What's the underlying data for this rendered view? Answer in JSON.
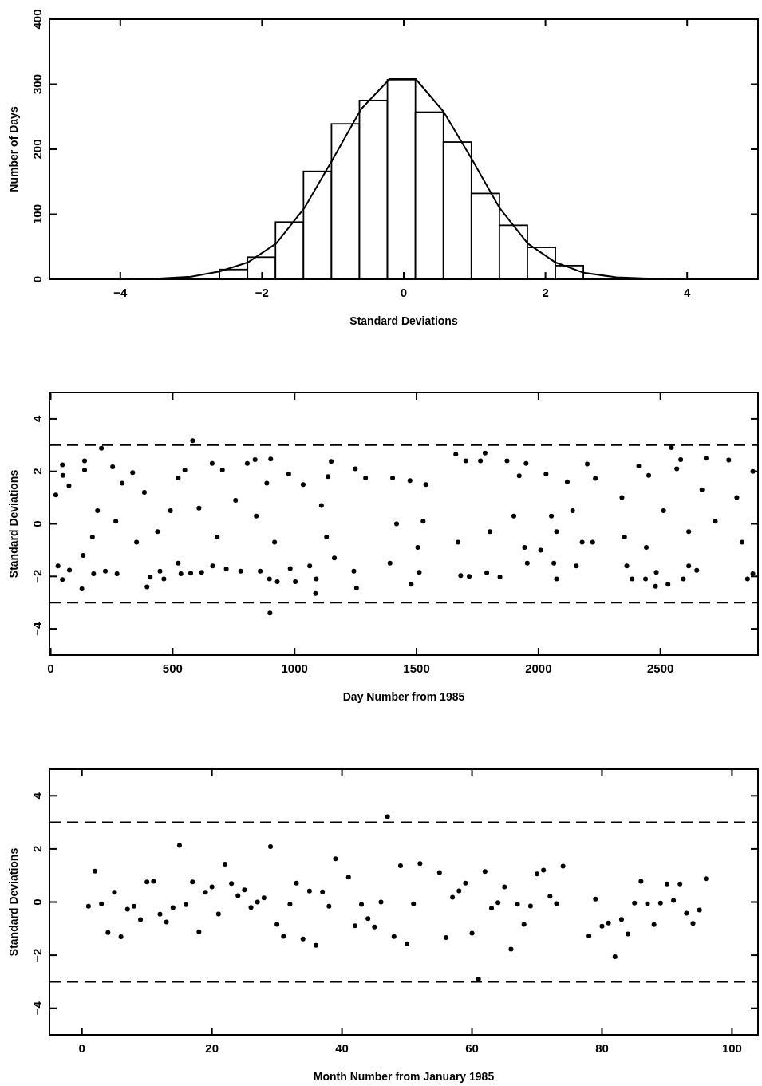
{
  "chart_data": [
    {
      "type": "histogram",
      "xlabel": "Standard Deviations",
      "ylabel": "Number of Days",
      "xlim": [
        -5,
        5
      ],
      "xticks": [
        -4,
        -2,
        0,
        2,
        4
      ],
      "ylim": [
        0,
        400
      ],
      "yticks": [
        0,
        100,
        200,
        300,
        400
      ],
      "grid": false,
      "series": [
        {
          "type": "histogram",
          "color": "#ffffff",
          "bins": [
            -2.6,
            -2.205,
            -1.81,
            -1.415,
            -1.02,
            -0.625,
            -0.23,
            0.165,
            0.56,
            0.955,
            1.35,
            1.745,
            2.14,
            2.535
          ],
          "values": [
            15,
            34,
            88,
            166,
            239,
            275,
            307,
            257,
            211,
            132,
            83,
            49,
            21
          ]
        },
        {
          "type": "line",
          "color": "#000000",
          "x": [
            -5,
            -4,
            -3.5,
            -3,
            -2.6,
            -2.2,
            -1.8,
            -1.4,
            -1,
            -0.6,
            -0.2,
            0.17,
            0.56,
            0.96,
            1.35,
            1.75,
            2.14,
            2.54,
            3,
            3.5,
            4,
            5
          ],
          "values": [
            0,
            0,
            1,
            4,
            12,
            26,
            55,
            110,
            185,
            262,
            308,
            308,
            258,
            185,
            110,
            55,
            26,
            10,
            3,
            1,
            0,
            0
          ]
        }
      ]
    },
    {
      "type": "scatter",
      "xlabel": "Day Number from 1985",
      "ylabel": "Standard Deviations",
      "xlim": [
        -5,
        2900
      ],
      "xticks": [
        0,
        500,
        1000,
        1500,
        2000,
        2500
      ],
      "ylim": [
        -5,
        5
      ],
      "yticks": [
        -4,
        -2,
        0,
        2,
        4
      ],
      "grid": false,
      "marker": "circle",
      "ref_lines": [
        {
          "axis": "y",
          "value": 3,
          "line_style": "dashed"
        },
        {
          "axis": "y",
          "value": -3,
          "line_style": "dashed"
        }
      ],
      "series": [
        {
          "color": "#000000",
          "x": [
            48,
            50,
            30,
            48,
            21,
            77,
            75,
            139,
            128,
            139,
            133,
            176,
            208,
            224,
            254,
            272,
            293,
            267,
            192,
            171,
            336,
            395,
            408,
            448,
            464,
            384,
            352,
            438,
            523,
            582,
            550,
            534,
            574,
            619,
            523,
            491,
            608,
            662,
            704,
            664,
            720,
            683,
            758,
            779,
            806,
            838,
            902,
            886,
            859,
            897,
            899,
            929,
            976,
            1003,
            982,
            918,
            843,
            1035,
            1089,
            1086,
            1062,
            1150,
            1163,
            1137,
            1110,
            1131,
            1249,
            1254,
            1243,
            1291,
            1391,
            1478,
            1511,
            1402,
            1473,
            1538,
            1527,
            1418,
            1505,
            1661,
            1781,
            1702,
            1762,
            1871,
            1949,
            1681,
            1716,
            1788,
            1842,
            1921,
            1670,
            1801,
            1899,
            1943,
            1954,
            2031,
            2074,
            2009,
            2053,
            2074,
            2063,
            2118,
            2200,
            2233,
            2155,
            2179,
            2222,
            2140,
            2342,
            2353,
            2362,
            2384,
            2411,
            2452,
            2439,
            2480,
            2483,
            2531,
            2545,
            2583,
            2567,
            2594,
            2687,
            2780,
            2616,
            2649,
            2857,
            2879,
            2879,
            2725,
            2513,
            2616,
            2813,
            2835,
            2442,
            2670
          ],
          "values": [
            2.25,
            1.85,
            -1.6,
            -2.12,
            1.1,
            -1.76,
            1.45,
            2.4,
            -2.48,
            2.05,
            -1.2,
            -1.9,
            2.88,
            -1.8,
            2.17,
            -1.9,
            1.55,
            0.1,
            0.5,
            -0.5,
            1.95,
            -2.4,
            -2.03,
            -1.8,
            -2.1,
            1.2,
            -0.7,
            -0.3,
            1.75,
            3.17,
            2.05,
            -1.9,
            -1.88,
            -1.85,
            -1.5,
            0.5,
            0.6,
            2.3,
            2.05,
            -1.6,
            -1.72,
            -0.5,
            0.9,
            -1.8,
            2.3,
            2.45,
            2.47,
            1.55,
            -1.8,
            -2.1,
            -3.4,
            -2.2,
            1.9,
            -2.2,
            -1.7,
            -0.7,
            0.3,
            1.5,
            -2.1,
            -2.65,
            -1.6,
            2.38,
            -1.3,
            1.8,
            0.7,
            -0.5,
            2.1,
            -2.45,
            -1.8,
            1.75,
            -1.5,
            -2.3,
            -1.85,
            1.75,
            1.65,
            1.5,
            0.1,
            0,
            -0.9,
            2.65,
            2.7,
            2.4,
            2.4,
            2.4,
            2.3,
            -1.97,
            -2,
            -1.86,
            -2.02,
            1.83,
            -0.7,
            -0.3,
            0.3,
            -0.9,
            -1.5,
            1.9,
            -2.1,
            -1,
            0.3,
            -0.3,
            -1.5,
            1.6,
            2.28,
            1.73,
            -1.6,
            -0.7,
            -0.7,
            0.5,
            1,
            -0.5,
            -1.6,
            -2.1,
            2.2,
            1.85,
            -2.1,
            -2.38,
            -1.85,
            -2.3,
            2.9,
            2.45,
            2.1,
            -2.1,
            2.5,
            2.43,
            -1.6,
            -1.77,
            -2.1,
            2,
            -1.9,
            0.1,
            0.5,
            -0.3,
            1,
            -0.7,
            -0.9,
            1.3
          ]
        }
      ]
    },
    {
      "type": "scatter",
      "xlabel": "Month Number from January 1985",
      "ylabel": "Standard Deviations",
      "xlim": [
        -5,
        104
      ],
      "xticks": [
        0,
        20,
        40,
        60,
        80,
        100
      ],
      "ylim": [
        -5,
        5
      ],
      "yticks": [
        -4,
        -2,
        0,
        2,
        4
      ],
      "grid": false,
      "marker": "circle",
      "ref_lines": [
        {
          "axis": "y",
          "value": 3,
          "line_style": "dashed"
        },
        {
          "axis": "y",
          "value": -3,
          "line_style": "dashed"
        }
      ],
      "series": [
        {
          "color": "#000000",
          "x": [
            1,
            2,
            3,
            4,
            5,
            6,
            7,
            8,
            9,
            10,
            11,
            12,
            13,
            14,
            15,
            16,
            17,
            18,
            19,
            20,
            21,
            22,
            23,
            24,
            25,
            26,
            27,
            28,
            29,
            30,
            31,
            32,
            33,
            34,
            35,
            36,
            37,
            38,
            39,
            41,
            42,
            43,
            44,
            45,
            46,
            47,
            48,
            49,
            50,
            51,
            52,
            55,
            56,
            57,
            58,
            59,
            60,
            61,
            62,
            63,
            64,
            65,
            66,
            67,
            68,
            69,
            70,
            71,
            72,
            73,
            74,
            78,
            79,
            80,
            81,
            82,
            83,
            84,
            85,
            86,
            87,
            88,
            89,
            90,
            91,
            92,
            93,
            94,
            95,
            96
          ],
          "values": [
            -0.16,
            1.16,
            -0.07,
            -1.15,
            0.37,
            -1.31,
            -0.27,
            -0.16,
            -0.66,
            0.76,
            0.78,
            -0.46,
            -0.75,
            -0.21,
            2.13,
            -0.1,
            0.76,
            -1.12,
            0.37,
            0.57,
            -0.45,
            1.43,
            0.7,
            0.24,
            0.46,
            -0.2,
            0,
            0.16,
            2.09,
            -0.84,
            -1.29,
            -0.08,
            0.71,
            -1.39,
            0.41,
            -1.63,
            0.38,
            -0.16,
            1.63,
            0.94,
            -0.89,
            -0.09,
            -0.62,
            -0.94,
            0,
            3.21,
            -1.3,
            1.37,
            -1.57,
            -0.07,
            1.45,
            1.11,
            -1.34,
            0.18,
            0.42,
            0.71,
            -1.17,
            -2.9,
            1.15,
            -0.23,
            -0.02,
            0.57,
            -1.77,
            -0.08,
            -0.84,
            -0.15,
            1.06,
            1.2,
            0.22,
            -0.06,
            1.35,
            -1.28,
            0.11,
            -0.91,
            -0.79,
            -2.06,
            -0.65,
            -1.2,
            -0.04,
            0.78,
            -0.07,
            -0.85,
            -0.04,
            0.68,
            0.06,
            0.68,
            -0.42,
            -0.8,
            -0.3,
            0.88
          ]
        }
      ]
    }
  ]
}
